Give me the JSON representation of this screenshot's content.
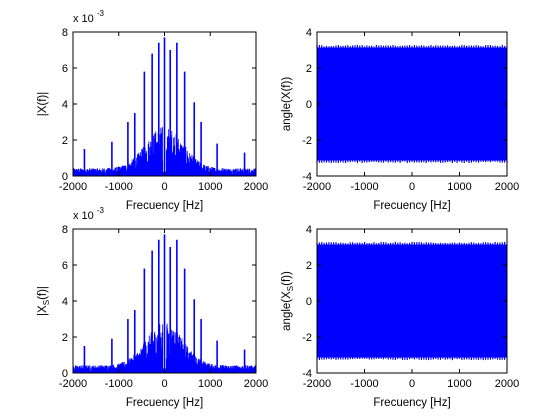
{
  "chart_data": [
    {
      "type": "line",
      "ylabel": "|X(f)|",
      "xlabel": "Frecuency [Hz]",
      "xlim": [
        -2000,
        2000
      ],
      "ylim": [
        0,
        0.008
      ],
      "xticks": [
        -2000,
        -1000,
        0,
        1000,
        2000
      ],
      "yticks": [
        0,
        0.002,
        0.004,
        0.006,
        0.008
      ],
      "ytick_labels": [
        "0",
        "2",
        "4",
        "6",
        "8"
      ],
      "y_exponent": "x 10",
      "y_exponent_power": "-3",
      "grid": false,
      "color": "#0000ff",
      "peaks": [
        {
          "x": 0,
          "y": 0.0077
        },
        {
          "x": -125,
          "y": 0.0074
        },
        {
          "x": 125,
          "y": 0.007
        },
        {
          "x": -270,
          "y": 0.0068
        },
        {
          "x": 270,
          "y": 0.0074
        },
        {
          "x": -440,
          "y": 0.0058
        },
        {
          "x": 440,
          "y": 0.0058
        },
        {
          "x": -650,
          "y": 0.0035
        },
        {
          "x": 650,
          "y": 0.0041
        },
        {
          "x": -800,
          "y": 0.003
        },
        {
          "x": 800,
          "y": 0.003
        },
        {
          "x": -1150,
          "y": 0.0019
        },
        {
          "x": 1150,
          "y": 0.0018
        },
        {
          "x": -1750,
          "y": 0.0015
        },
        {
          "x": 1750,
          "y": 0.0013
        }
      ]
    },
    {
      "type": "line",
      "ylabel": "angle(X(f))",
      "xlabel": "Frecuency [Hz]",
      "xlim": [
        -2000,
        2000
      ],
      "ylim": [
        -4,
        4
      ],
      "xticks": [
        -2000,
        -1000,
        0,
        1000,
        2000
      ],
      "yticks": [
        -4,
        -2,
        0,
        2,
        4
      ],
      "band": [
        -3.14159,
        3.14159
      ],
      "grid": false,
      "color": "#0000ff"
    },
    {
      "type": "line",
      "ylabel": "|X",
      "ylabel_sub": "S",
      "ylabel_tail": "(f)|",
      "xlabel": "Frecuency [Hz]",
      "xlim": [
        -2000,
        2000
      ],
      "ylim": [
        0,
        0.008
      ],
      "xticks": [
        -2000,
        -1000,
        0,
        1000,
        2000
      ],
      "yticks": [
        0,
        0.002,
        0.004,
        0.006,
        0.008
      ],
      "ytick_labels": [
        "0",
        "2",
        "4",
        "6",
        "8"
      ],
      "y_exponent": "x 10",
      "y_exponent_power": "-3",
      "grid": false,
      "color": "#0000ff",
      "peaks": [
        {
          "x": 0,
          "y": 0.0077
        },
        {
          "x": -125,
          "y": 0.0074
        },
        {
          "x": 125,
          "y": 0.007
        },
        {
          "x": -270,
          "y": 0.0068
        },
        {
          "x": 270,
          "y": 0.0074
        },
        {
          "x": -440,
          "y": 0.0058
        },
        {
          "x": 440,
          "y": 0.0058
        },
        {
          "x": -650,
          "y": 0.0035
        },
        {
          "x": 650,
          "y": 0.0041
        },
        {
          "x": -800,
          "y": 0.003
        },
        {
          "x": 800,
          "y": 0.003
        },
        {
          "x": -1150,
          "y": 0.0019
        },
        {
          "x": 1150,
          "y": 0.0018
        },
        {
          "x": -1750,
          "y": 0.0015
        },
        {
          "x": 1750,
          "y": 0.0013
        }
      ]
    },
    {
      "type": "line",
      "ylabel": "angle(X",
      "ylabel_sub": "S",
      "ylabel_tail": "(f))",
      "xlabel": "Frecuency [Hz]",
      "xlim": [
        -2000,
        2000
      ],
      "ylim": [
        -4,
        4
      ],
      "xticks": [
        -2000,
        -1000,
        0,
        1000,
        2000
      ],
      "yticks": [
        -4,
        -2,
        0,
        2,
        4
      ],
      "band": [
        -3.14159,
        3.14159
      ],
      "grid": false,
      "color": "#0000ff"
    }
  ]
}
